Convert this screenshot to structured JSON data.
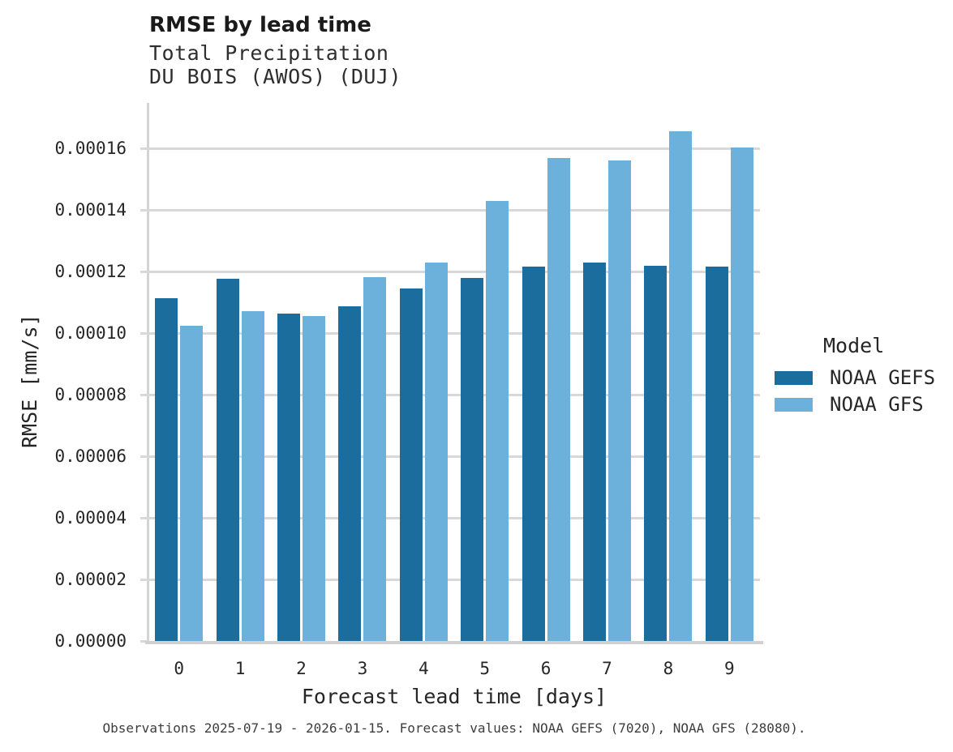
{
  "figure": {
    "title": "RMSE by lead time",
    "subtitle_line1": "Total Precipitation",
    "subtitle_line2": "DU BOIS (AWOS) (DUJ)",
    "caption": "Observations 2025-07-19 - 2026-01-15. Forecast values: NOAA GEFS (7020), NOAA GFS (28080)."
  },
  "colors": {
    "gefs_dark_blue": "#1a6d9c",
    "gfs_light_blue": "#6cb0dc",
    "gridline_gray": "#d8d8d8",
    "axis_gray": "#d0d0d0",
    "tick_text": "#262626",
    "caption_text": "#3d3d3d"
  },
  "legend": {
    "title": "Model",
    "entries": [
      {
        "label": "NOAA GEFS",
        "color": "#1a6d9c"
      },
      {
        "label": "NOAA GFS",
        "color": "#6cb0dc"
      }
    ]
  },
  "chart_data": {
    "type": "bar",
    "title": "RMSE by lead time",
    "subtitle": [
      "Total Precipitation",
      "DU BOIS (AWOS) (DUJ)"
    ],
    "xlabel": "Forecast lead time [days]",
    "ylabel": "RMSE [mm/s]",
    "categories": [
      "0",
      "1",
      "2",
      "3",
      "4",
      "5",
      "6",
      "7",
      "8",
      "9"
    ],
    "series": [
      {
        "name": "NOAA GEFS",
        "color": "#1a6d9c",
        "values": [
          0.0001112,
          0.0001176,
          0.0001064,
          0.0001088,
          0.0001145,
          0.000118,
          0.0001216,
          0.0001228,
          0.0001218,
          0.0001217
        ]
      },
      {
        "name": "NOAA GFS",
        "color": "#6cb0dc",
        "values": [
          0.0001025,
          0.0001072,
          0.0001056,
          0.0001181,
          0.000123,
          0.000143,
          0.0001568,
          0.000156,
          0.0001655,
          0.0001603
        ]
      }
    ],
    "ylim": [
      0,
      0.000175
    ],
    "yticks": [
      {
        "v": 0.0,
        "label": "0.00000"
      },
      {
        "v": 2e-05,
        "label": "0.00002"
      },
      {
        "v": 4e-05,
        "label": "0.00004"
      },
      {
        "v": 6e-05,
        "label": "0.00006"
      },
      {
        "v": 8e-05,
        "label": "0.00008"
      },
      {
        "v": 0.0001,
        "label": "0.00010"
      },
      {
        "v": 0.00012,
        "label": "0.00012"
      },
      {
        "v": 0.00014,
        "label": "0.00014"
      },
      {
        "v": 0.00016,
        "label": "0.00016"
      }
    ],
    "grid": "horizontal",
    "legend_title": "Model",
    "legend_position": "center-right",
    "caption": "Observations 2025-07-19 - 2026-01-15. Forecast values: NOAA GEFS (7020), NOAA GFS (28080)."
  }
}
